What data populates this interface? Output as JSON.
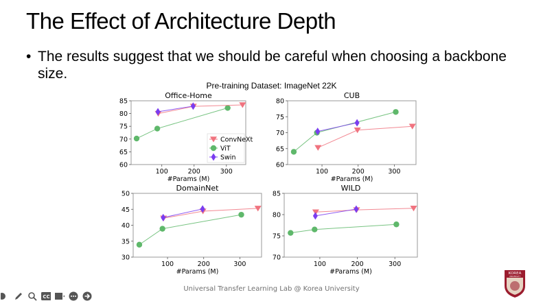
{
  "slide": {
    "title": "The Effect of Architecture Depth",
    "bullet": "The results suggest that we should be careful when choosing a backbone size.",
    "bullet_marker": "•",
    "footer": "Universal Transfer Learning Lab @ Korea University",
    "logo_text": "KOREA",
    "logo_sub": "UNIVERSITY"
  },
  "toolbar": {
    "icons": [
      "circle-icon",
      "pen-icon",
      "search-icon",
      "captions-icon",
      "video-icon",
      "more-icon",
      "next-icon"
    ],
    "cc_label": "CC"
  },
  "colors": {
    "ConvNeXt": "#f0737f",
    "ViT": "#5fb86b",
    "Swin": "#7a3df0"
  },
  "chart_data": {
    "suptitle": "Pre-training Dataset: ImageNet 22K",
    "charts": [
      {
        "type": "line",
        "title": "Office-Home",
        "xlabel": "#Params (M)",
        "ylabel": "",
        "xticks": [
          100,
          200,
          300
        ],
        "yticks": [
          60,
          65,
          70,
          75,
          80,
          85
        ],
        "xlim": [
          5,
          360
        ],
        "ylim": [
          60,
          85
        ],
        "legend": "lower-right",
        "series": [
          {
            "name": "ConvNeXt",
            "marker": "triangle-down",
            "x": [
              89,
              198,
              350
            ],
            "y": [
              80.0,
              82.8,
              83.4
            ]
          },
          {
            "name": "ViT",
            "marker": "circle",
            "x": [
              22,
              86,
              304
            ],
            "y": [
              70.2,
              74.1,
              82.2
            ]
          },
          {
            "name": "Swin",
            "marker": "diamond",
            "x": [
              88,
              197
            ],
            "y": [
              80.7,
              82.9
            ]
          }
        ]
      },
      {
        "type": "line",
        "title": "CUB",
        "xlabel": "#Params (M)",
        "ylabel": "",
        "xticks": [
          100,
          200,
          300
        ],
        "yticks": [
          60,
          65,
          70,
          75,
          80
        ],
        "xlim": [
          5,
          360
        ],
        "ylim": [
          60,
          80
        ],
        "legend": "none",
        "series": [
          {
            "name": "ConvNeXt",
            "marker": "triangle-down",
            "x": [
              89,
              198,
              350
            ],
            "y": [
              65.3,
              70.8,
              72.0
            ]
          },
          {
            "name": "ViT",
            "marker": "circle",
            "x": [
              22,
              86,
              304
            ],
            "y": [
              64.0,
              70.0,
              76.5
            ]
          },
          {
            "name": "Swin",
            "marker": "diamond",
            "x": [
              88,
              197
            ],
            "y": [
              70.4,
              73.1
            ]
          }
        ]
      },
      {
        "type": "line",
        "title": "DomainNet",
        "xlabel": "#Params (M)",
        "ylabel": "",
        "xticks": [
          100,
          200,
          300
        ],
        "yticks": [
          30,
          35,
          40,
          45,
          50
        ],
        "xlim": [
          5,
          360
        ],
        "ylim": [
          30,
          50
        ],
        "legend": "none",
        "series": [
          {
            "name": "ConvNeXt",
            "marker": "triangle-down",
            "x": [
              89,
              198,
              350
            ],
            "y": [
              42.2,
              44.4,
              45.3
            ]
          },
          {
            "name": "ViT",
            "marker": "circle",
            "x": [
              22,
              86,
              304
            ],
            "y": [
              33.9,
              38.9,
              43.3
            ]
          },
          {
            "name": "Swin",
            "marker": "diamond",
            "x": [
              88,
              197
            ],
            "y": [
              42.4,
              45.1
            ]
          }
        ]
      },
      {
        "type": "line",
        "title": "WILD",
        "xlabel": "#Params (M)",
        "ylabel": "",
        "xticks": [
          100,
          200,
          300
        ],
        "yticks": [
          70,
          75,
          80,
          85
        ],
        "xlim": [
          5,
          360
        ],
        "ylim": [
          70,
          85
        ],
        "legend": "none",
        "series": [
          {
            "name": "ConvNeXt",
            "marker": "triangle-down",
            "x": [
              89,
              198,
              350
            ],
            "y": [
              80.6,
              81.1,
              81.5
            ]
          },
          {
            "name": "ViT",
            "marker": "circle",
            "x": [
              22,
              86,
              304
            ],
            "y": [
              75.7,
              76.5,
              77.7
            ]
          },
          {
            "name": "Swin",
            "marker": "diamond",
            "x": [
              88,
              197
            ],
            "y": [
              79.7,
              81.3
            ]
          }
        ]
      }
    ]
  }
}
